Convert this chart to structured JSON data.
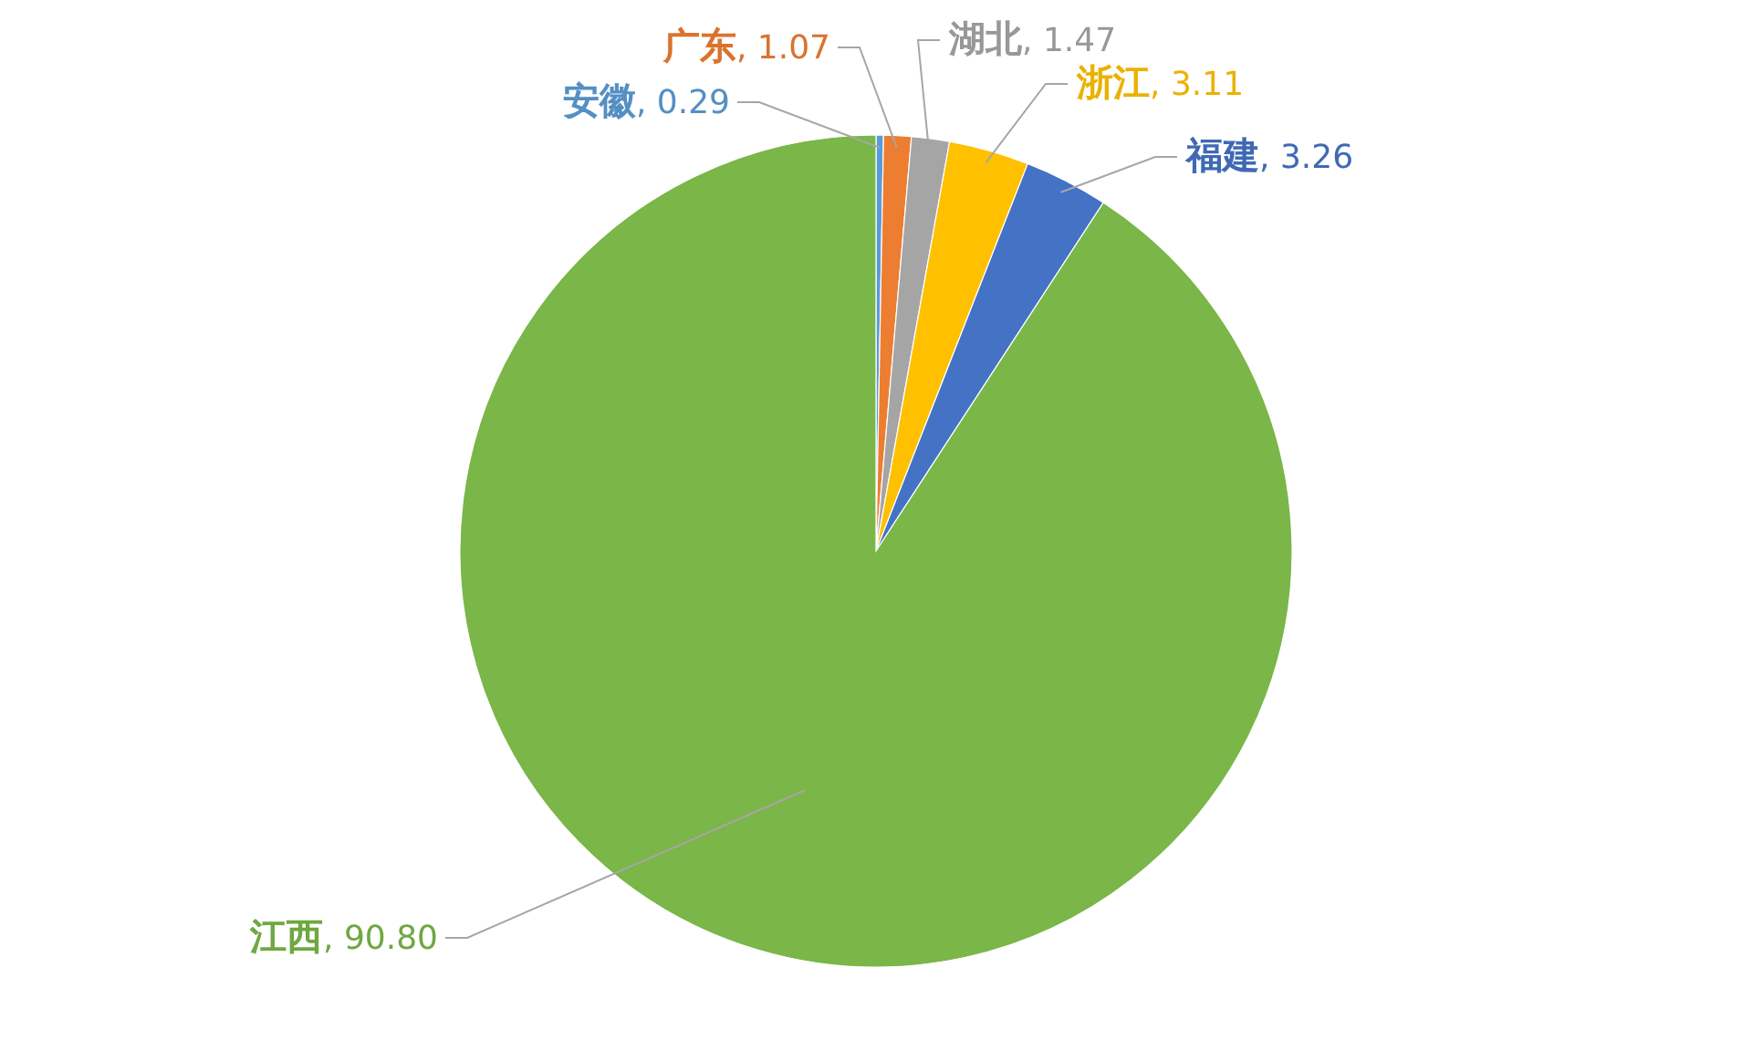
{
  "chart_data": {
    "type": "pie",
    "categories": [
      "安徽",
      "广东",
      "湖北",
      "浙江",
      "福建",
      "江西"
    ],
    "values": [
      0.29,
      1.07,
      1.47,
      3.11,
      3.26,
      90.8
    ],
    "colors": [
      "#5b9bd5",
      "#ed7d31",
      "#a5a5a5",
      "#ffc000",
      "#4472c4",
      "#7ab648"
    ],
    "value_labels": [
      ", 0.29",
      ", 1.07",
      ", 1.47",
      ", 3.11",
      ", 3.26",
      ", 90.80"
    ]
  }
}
